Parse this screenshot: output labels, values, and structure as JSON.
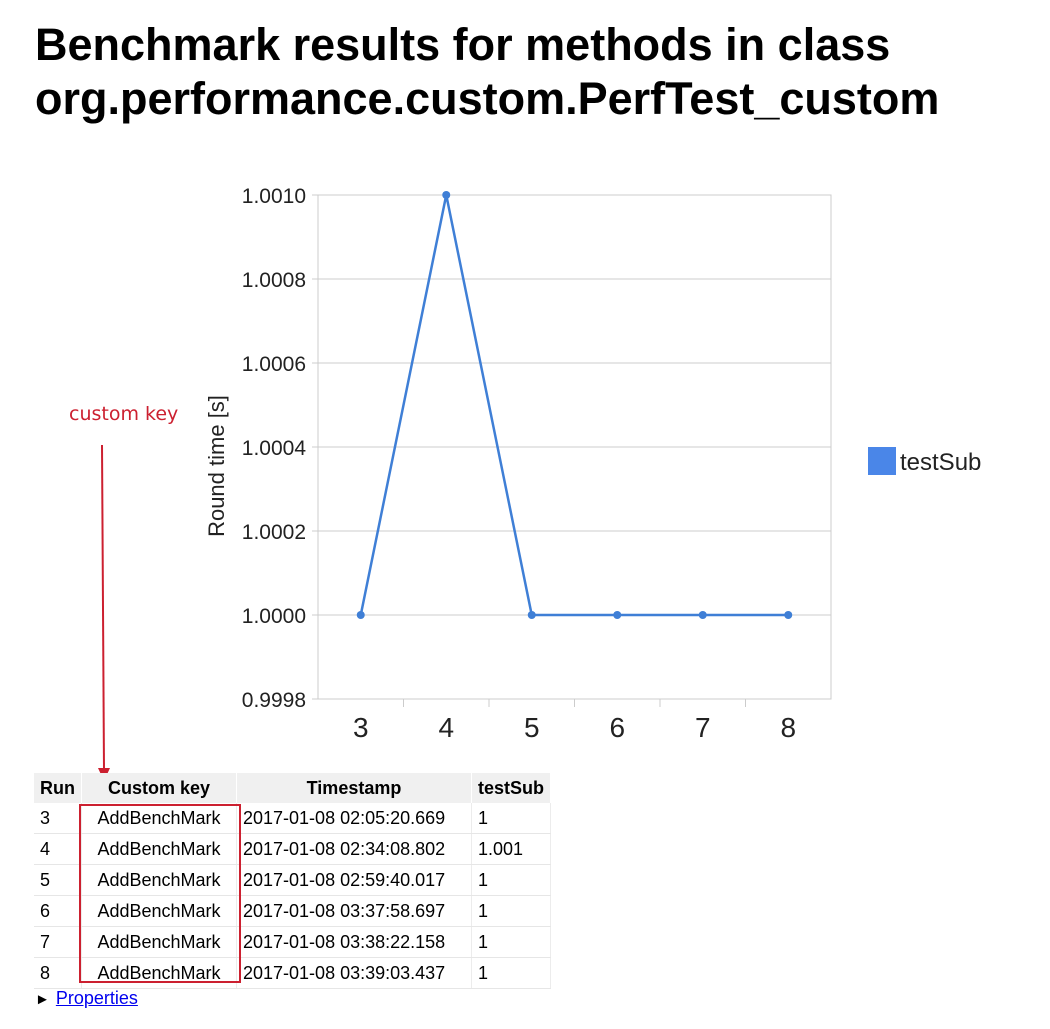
{
  "page": {
    "title_line1": "Benchmark results for methods in class",
    "title_line2": "org.performance.custom.PerfTest_custom"
  },
  "annotation": {
    "label": "custom key",
    "color": "#cc2030"
  },
  "chart_data": {
    "type": "line",
    "x": [
      3,
      4,
      5,
      6,
      7,
      8
    ],
    "series": [
      {
        "name": "testSub",
        "values": [
          1.0,
          1.001,
          1.0,
          1.0,
          1.0,
          1.0
        ],
        "color": "#3f7fd6"
      }
    ],
    "ylabel": "Round time [s]",
    "ylim": [
      0.9998,
      1.001
    ],
    "yticks": [
      "0.9998",
      "1.0000",
      "1.0002",
      "1.0004",
      "1.0006",
      "1.0008",
      "1.0010"
    ],
    "xticks": [
      "3",
      "4",
      "5",
      "6",
      "7",
      "8"
    ],
    "grid": true,
    "legend_position": "right",
    "legend_color": "#4a86e8"
  },
  "table": {
    "headers": [
      "Run",
      "Custom key",
      "Timestamp",
      "testSub"
    ],
    "rows": [
      [
        "3",
        "AddBenchMark",
        "2017-01-08 02:05:20.669",
        "1"
      ],
      [
        "4",
        "AddBenchMark",
        "2017-01-08 02:34:08.802",
        "1.001"
      ],
      [
        "5",
        "AddBenchMark",
        "2017-01-08 02:59:40.017",
        "1"
      ],
      [
        "6",
        "AddBenchMark",
        "2017-01-08 03:37:58.697",
        "1"
      ],
      [
        "7",
        "AddBenchMark",
        "2017-01-08 03:38:22.158",
        "1"
      ],
      [
        "8",
        "AddBenchMark",
        "2017-01-08 03:39:03.437",
        "1"
      ]
    ]
  },
  "properties": {
    "toggle_icon": "triangle-right-icon",
    "link_label": "Properties"
  }
}
